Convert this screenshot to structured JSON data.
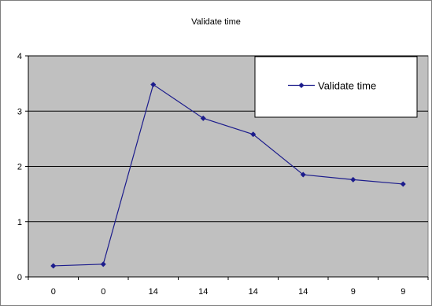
{
  "chart_data": {
    "type": "line",
    "title": "Validate time",
    "xlabel": "",
    "ylabel": "",
    "categories": [
      "0",
      "0",
      "14",
      "14",
      "14",
      "14",
      "9",
      "9"
    ],
    "series": [
      {
        "name": "Validate time",
        "values": [
          0.2,
          0.23,
          3.48,
          2.87,
          2.58,
          1.85,
          1.76,
          1.68
        ],
        "color": "#1c1c8c"
      }
    ],
    "ylim": [
      0,
      4
    ],
    "yticks": [
      0,
      1,
      2,
      3,
      4
    ],
    "grid": true,
    "plot_background": "#c0c0c0",
    "legend_position": "top-right"
  }
}
